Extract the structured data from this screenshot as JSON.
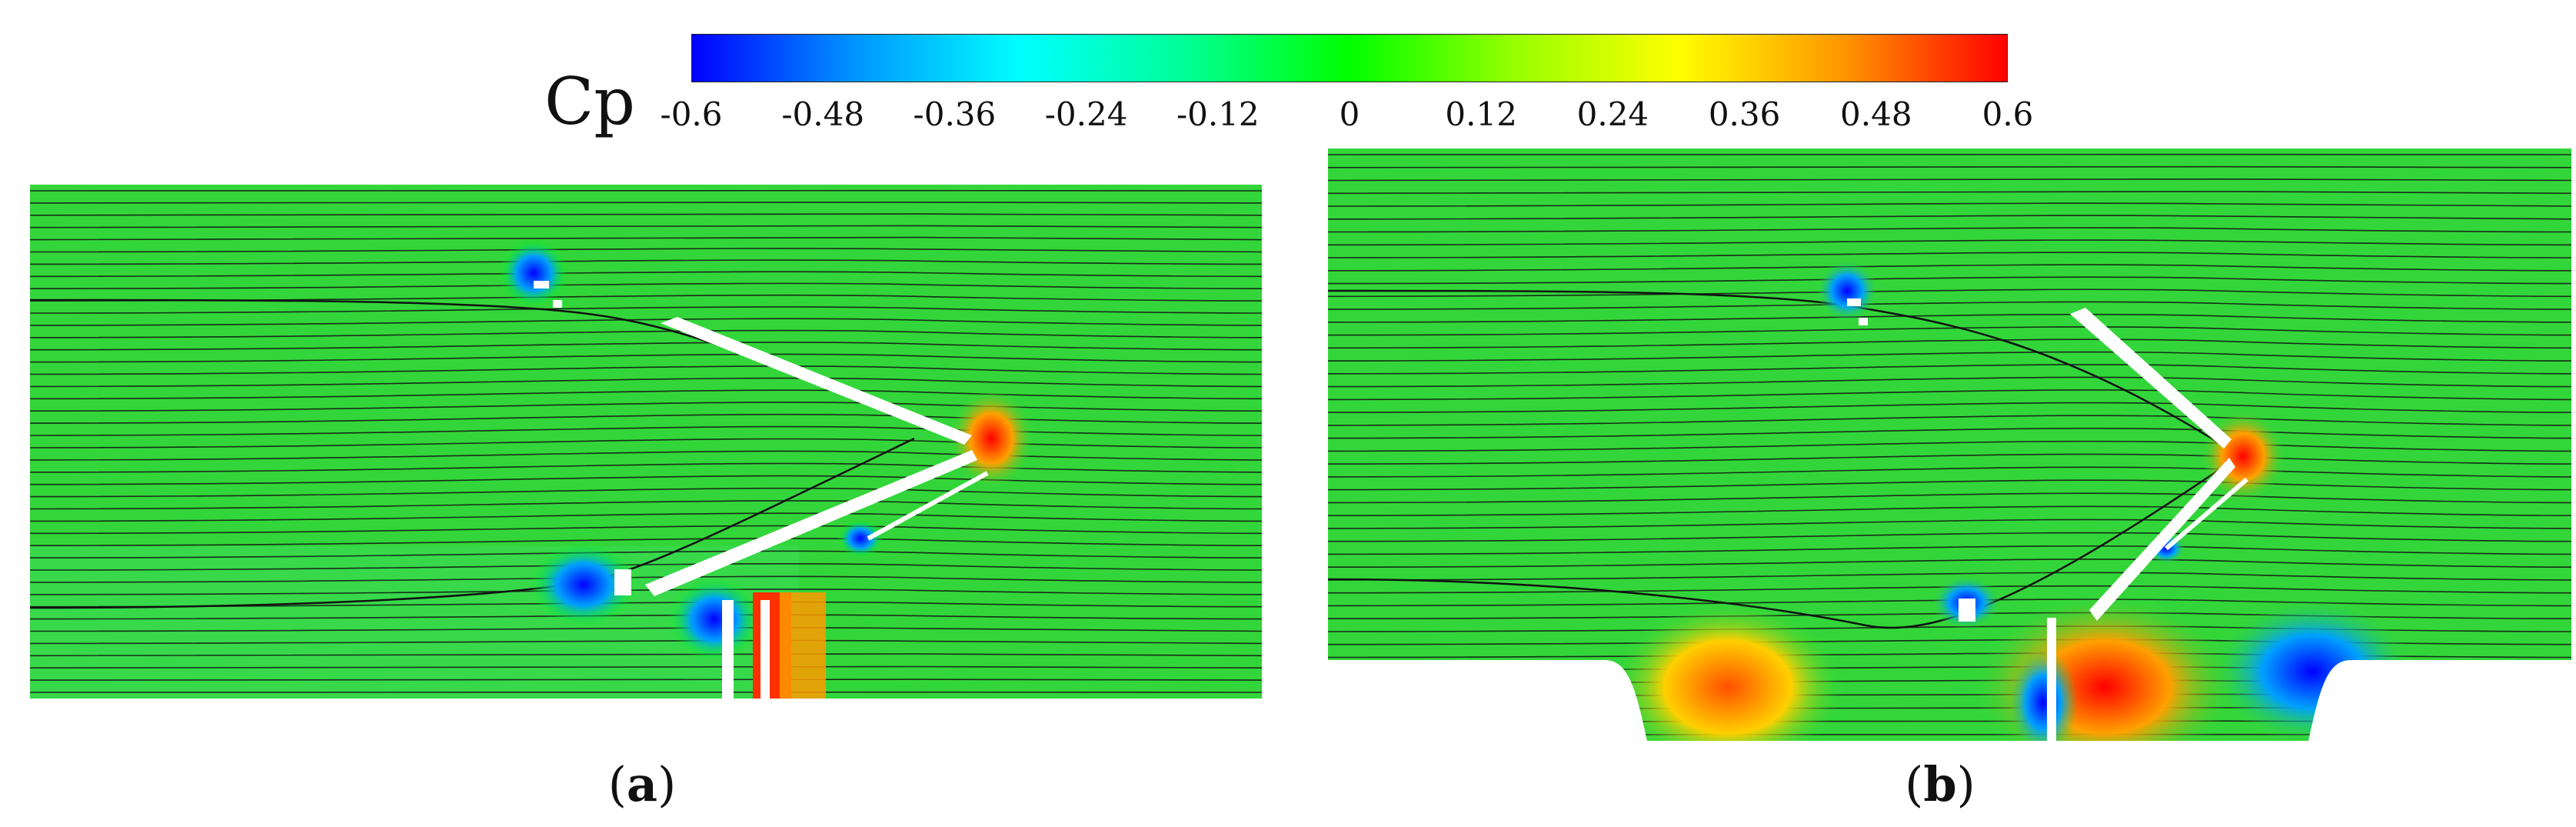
{
  "colorbar": {
    "title": "Cp",
    "ticks": [
      "-0.6",
      "-0.48",
      "-0.36",
      "-0.24",
      "-0.12",
      "0",
      "0.12",
      "0.24",
      "0.36",
      "0.48",
      "0.6"
    ],
    "colors": [
      "#0000ff",
      "#0096ff",
      "#00ffff",
      "#00ff96",
      "#00ff00",
      "#96ff00",
      "#ffff00",
      "#ff9600",
      "#ff0000"
    ]
  },
  "panels": [
    {
      "label": "a",
      "caption_open": "(",
      "caption_close": ")"
    },
    {
      "label": "b",
      "caption_open": "(",
      "caption_close": ")"
    }
  ],
  "field_color": "#33d63a"
}
